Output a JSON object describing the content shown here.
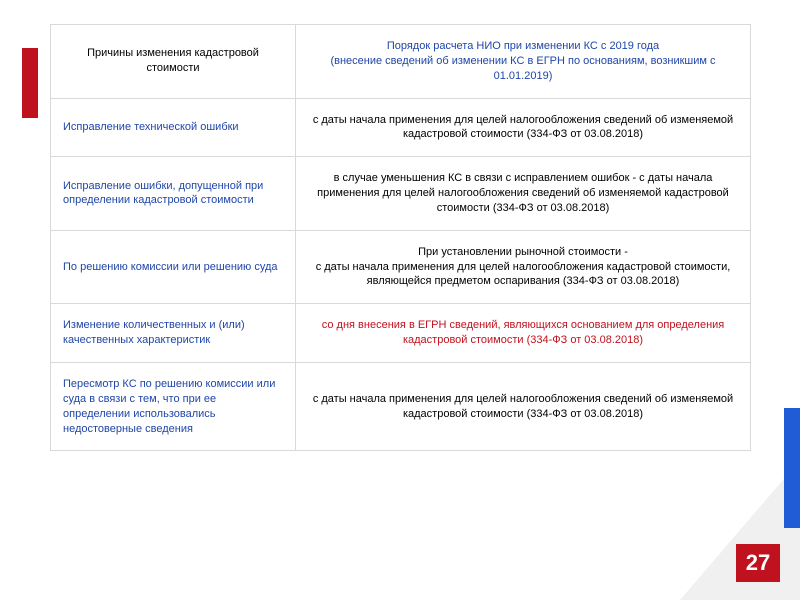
{
  "accent_colors": {
    "red": "#c0121e",
    "blue": "#1f5cd6",
    "header_blue": "#1f46a8",
    "border_gray": "#d9d9d9",
    "corner_gray": "#ececec"
  },
  "page_number": "27",
  "table": {
    "header_left": "Причины изменения кадастровой стоимости",
    "header_right": "Порядок расчета НИО при изменении КС с 2019 года\n(внесение сведений об изменении КС в ЕГРН по основаниям, возникшим с 01.01.2019)",
    "rows": [
      {
        "left": "Исправление технической ошибки",
        "right": "с даты начала применения для целей налогообложения сведений об изменяемой кадастровой стоимости (334-ФЗ от 03.08.2018)",
        "right_red": false
      },
      {
        "left": "Исправление ошибки, допущенной при определении кадастровой стоимости",
        "right": "в случае уменьшения КС в связи с исправлением ошибок - с даты начала применения для целей налогообложения сведений об изменяемой кадастровой стоимости (334-ФЗ от 03.08.2018)",
        "right_red": false
      },
      {
        "left": "По решению комиссии или решению суда",
        "right": "При установлении рыночной стоимости -\nс даты начала применения для целей налогообложения кадастровой стоимости, являющейся предметом оспаривания  (334-ФЗ от 03.08.2018)",
        "right_red": false
      },
      {
        "left": "Изменение количественных и (или) качественных характеристик",
        "right": "со дня внесения в ЕГРН сведений, являющихся основанием для определения кадастровой стоимости (334-ФЗ от 03.08.2018)",
        "right_red": true
      },
      {
        "left": "Пересмотр КС по решению комиссии или суда в связи с тем, что при ее определении использовались недостоверные сведения",
        "right": "с даты начала применения для целей налогообложения сведений об изменяемой кадастровой стоимости (334-ФЗ от 03.08.2018)",
        "right_red": false
      }
    ]
  }
}
